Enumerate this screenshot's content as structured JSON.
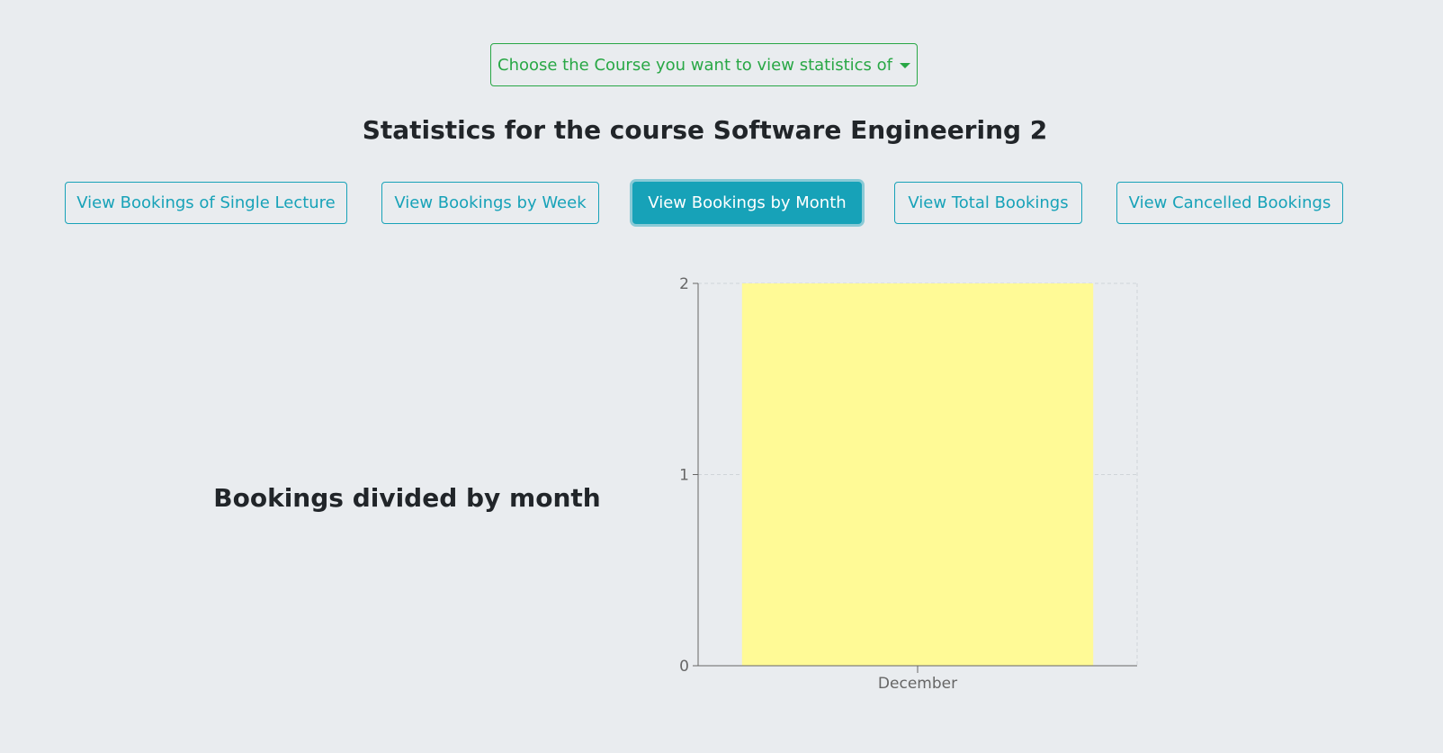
{
  "dropdown": {
    "label": "Choose the Course you want to view statistics of",
    "icon": "caret-down-icon"
  },
  "page_title": "Statistics for the course Software Engineering 2",
  "tabs": [
    {
      "label": "View Bookings of Single Lecture",
      "active": false
    },
    {
      "label": "View Bookings by Week",
      "active": false
    },
    {
      "label": "View Bookings by Month",
      "active": true
    },
    {
      "label": "View Total Bookings",
      "active": false
    },
    {
      "label": "View Cancelled Bookings",
      "active": false
    }
  ],
  "colors": {
    "dropdown_outline": "#28a745",
    "tab_outline": "#17a2b8",
    "bar_fill": "#fffa96",
    "background": "#e9ecef"
  },
  "chart_title": "Bookings divided by month",
  "chart_data": {
    "type": "bar",
    "categories": [
      "December"
    ],
    "values": [
      2
    ],
    "ylim": [
      0,
      2
    ],
    "yticks": [
      "0",
      "1",
      "2"
    ],
    "grid": true,
    "legend": "none"
  }
}
